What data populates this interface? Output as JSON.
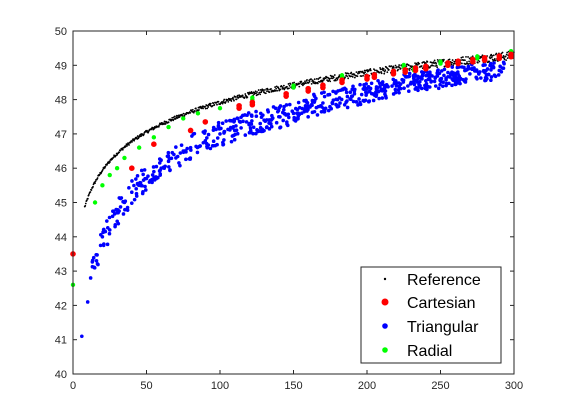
{
  "chart_data": {
    "type": "scatter",
    "title": "",
    "xlabel": "",
    "ylabel": "",
    "xlim": [
      0,
      300
    ],
    "ylim": [
      40,
      50
    ],
    "xticks": [
      0,
      50,
      100,
      150,
      200,
      250,
      300
    ],
    "yticks": [
      40,
      41,
      42,
      43,
      44,
      45,
      46,
      47,
      48,
      49,
      50
    ],
    "grid": false,
    "legend_position": "bottom-right",
    "series": [
      {
        "name": "Reference",
        "color": "#000000",
        "marker": "small-dot",
        "model": "y ≈ 42.1 + 1.26·ln(1 + x)",
        "x_range": [
          8,
          300
        ]
      },
      {
        "name": "Cartesian",
        "color": "#ff0000",
        "marker": "dot",
        "points": [
          [
            0,
            43.5
          ],
          [
            40,
            46.0
          ],
          [
            55,
            46.7
          ],
          [
            80,
            47.1
          ],
          [
            90,
            47.35
          ],
          [
            113,
            47.75
          ],
          [
            122,
            47.85
          ],
          [
            145,
            48.1
          ],
          [
            160,
            48.25
          ],
          [
            170,
            48.35
          ],
          [
            183,
            48.5
          ],
          [
            200,
            48.6
          ],
          [
            205,
            48.65
          ],
          [
            218,
            48.75
          ],
          [
            226,
            48.8
          ],
          [
            233,
            48.85
          ],
          [
            240,
            48.9
          ],
          [
            255,
            49.0
          ],
          [
            262,
            49.05
          ],
          [
            272,
            49.1
          ],
          [
            280,
            49.15
          ],
          [
            290,
            49.2
          ],
          [
            298,
            49.25
          ]
        ]
      },
      {
        "name": "Triangular",
        "color": "#0000ff",
        "marker": "dot",
        "points": [
          [
            6,
            41.1
          ],
          [
            10,
            42.1
          ],
          [
            12,
            42.8
          ],
          [
            16,
            43.3
          ],
          [
            20,
            44.0
          ],
          [
            25,
            44.2
          ],
          [
            30,
            44.7
          ],
          [
            35,
            45.0
          ],
          [
            40,
            45.3
          ],
          [
            45,
            45.5
          ],
          [
            50,
            45.7
          ],
          [
            55,
            45.9
          ],
          [
            60,
            46.0
          ],
          [
            65,
            46.2
          ],
          [
            70,
            46.3
          ],
          [
            75,
            46.5
          ],
          [
            80,
            46.6
          ],
          [
            90,
            46.8
          ],
          [
            100,
            47.0
          ],
          [
            110,
            47.1
          ],
          [
            120,
            47.3
          ],
          [
            130,
            47.4
          ],
          [
            140,
            47.5
          ],
          [
            150,
            47.6
          ],
          [
            160,
            47.8
          ],
          [
            170,
            47.9
          ],
          [
            180,
            48.0
          ],
          [
            190,
            48.1
          ],
          [
            200,
            48.2
          ],
          [
            210,
            48.3
          ],
          [
            220,
            48.4
          ],
          [
            230,
            48.5
          ],
          [
            240,
            48.55
          ],
          [
            250,
            48.6
          ],
          [
            260,
            48.7
          ],
          [
            270,
            48.75
          ],
          [
            280,
            48.8
          ],
          [
            290,
            48.85
          ]
        ]
      },
      {
        "name": "Radial",
        "color": "#00ff00",
        "marker": "dot",
        "points": [
          [
            0,
            42.6
          ],
          [
            15,
            45.0
          ],
          [
            20,
            45.5
          ],
          [
            25,
            45.8
          ],
          [
            30,
            46.0
          ],
          [
            35,
            46.3
          ],
          [
            45,
            46.6
          ],
          [
            55,
            46.9
          ],
          [
            65,
            47.2
          ],
          [
            75,
            47.45
          ],
          [
            85,
            47.6
          ],
          [
            100,
            47.75
          ],
          [
            122,
            48.0
          ],
          [
            150,
            48.35
          ],
          [
            183,
            48.65
          ],
          [
            225,
            48.95
          ],
          [
            232,
            48.85
          ],
          [
            250,
            49.05
          ],
          [
            275,
            49.2
          ],
          [
            298,
            49.35
          ]
        ]
      }
    ]
  }
}
